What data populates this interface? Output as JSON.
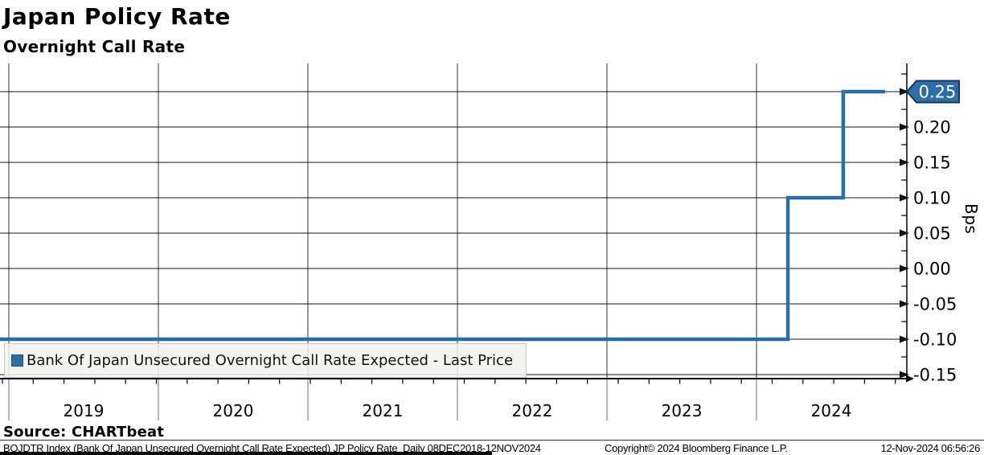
{
  "header": {
    "title": "Japan Policy Rate",
    "subtitle": "Overnight Call Rate"
  },
  "legend": {
    "label": "Bank Of Japan Unsecured Overnight Call Rate Expected - Last Price",
    "swatch_color": "#2e6da4"
  },
  "source": "Source: CHARTbeat",
  "footer": {
    "left": "BOJDTR Index (Bank Of Japan Unsecured Overnight Call Rate Expected) JP Policy Rate  Daily 08DEC2018-12NOV2024",
    "center": "Copyright© 2024 Bloomberg Finance L.P.",
    "right": "12-Nov-2024 06:56:26"
  },
  "chart_data": {
    "type": "line",
    "style": "step",
    "title": "Japan Policy Rate",
    "subtitle": "Overnight Call Rate",
    "ylabel": "Bps",
    "xlabel": "",
    "grid": true,
    "legend_position": "bottom-left",
    "x_range": [
      2018.94,
      2025.0
    ],
    "y_range": [
      -0.175,
      0.29
    ],
    "xticks": [
      2019,
      2020,
      2021,
      2022,
      2023,
      2024
    ],
    "yticks": [
      0.25,
      0.2,
      0.15,
      0.1,
      0.05,
      0.0,
      -0.05,
      -0.1,
      -0.15
    ],
    "ytick_labels": [
      "0.25",
      "0.20",
      "0.15",
      "0.10",
      "0.05",
      "0.00",
      "-0.05",
      "-0.10",
      "-0.15"
    ],
    "last_price": "0.25",
    "series": [
      {
        "name": "Bank Of Japan Unsecured Overnight Call Rate Expected - Last Price",
        "color": "#2e6da4",
        "points": [
          [
            2018.94,
            -0.1
          ],
          [
            2024.21,
            -0.1
          ],
          [
            2024.21,
            0.1
          ],
          [
            2024.58,
            0.1
          ],
          [
            2024.58,
            0.25
          ],
          [
            2024.86,
            0.25
          ]
        ]
      }
    ]
  }
}
